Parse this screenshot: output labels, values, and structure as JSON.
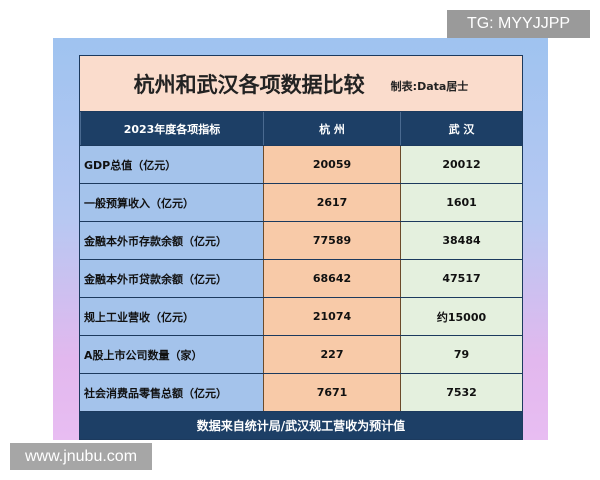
{
  "watermark_top": "TG: MYYJJPP",
  "watermark_bottom": "www.jnubu.com",
  "title": "杭州和武汉各项数据比较",
  "credit": "制表:Data居士",
  "headers": [
    "2023年度各项指标",
    "杭 州",
    "武 汉"
  ],
  "rows": [
    [
      "GDP总值（亿元）",
      "20059",
      "20012"
    ],
    [
      "一般预算收入（亿元）",
      "2617",
      "1601"
    ],
    [
      "金融本外币存款余额（亿元）",
      "77589",
      "38484"
    ],
    [
      "金融本外币贷款余额（亿元）",
      "68642",
      "47517"
    ],
    [
      "规上工业营收（亿元）",
      "21074",
      "约15000"
    ],
    [
      "A股上市公司数量（家）",
      "227",
      "79"
    ],
    [
      "社会消费品零售总额（亿元）",
      "7671",
      "7532"
    ]
  ],
  "footer": "数据来自统计局/武汉规工营收为预计值"
}
